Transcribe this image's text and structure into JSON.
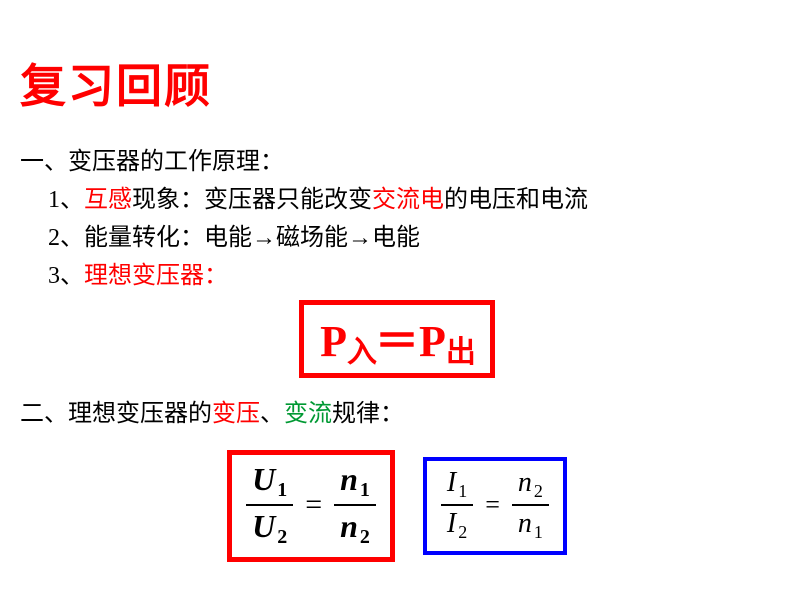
{
  "title": {
    "text": "复习回顾",
    "color": "#ff0000"
  },
  "section1": {
    "head_pre": "一、",
    "head_main": "变压器的工作原理：",
    "items": [
      {
        "num": "1、",
        "parts": [
          {
            "t": "互感",
            "c": "red"
          },
          {
            "t": "现象：变压器只能改变",
            "c": "blk"
          },
          {
            "t": "交流电",
            "c": "red"
          },
          {
            "t": "的电压和电流",
            "c": "blk"
          }
        ]
      },
      {
        "num": "2、",
        "parts": [
          {
            "t": "能量转化：",
            "c": "blk"
          },
          {
            "t": "电能→磁场能→电能",
            "c": "blk"
          }
        ]
      },
      {
        "num": "3、",
        "parts": [
          {
            "t": "理想变压器：",
            "c": "red"
          }
        ]
      }
    ]
  },
  "power_eq": {
    "left_var": "P",
    "left_sub": "入",
    "eq": "＝",
    "right_var": "P",
    "right_sub": "出",
    "border_color": "#ff0000",
    "text_color": "#ff0000"
  },
  "section2": {
    "head_pre": "二、",
    "parts": [
      {
        "t": "理想变压器的",
        "c": "blk"
      },
      {
        "t": "变压",
        "c": "red"
      },
      {
        "t": "、",
        "c": "blk"
      },
      {
        "t": "变流",
        "c": "green"
      },
      {
        "t": "规律：",
        "c": "blk"
      }
    ]
  },
  "formula_u": {
    "border_color": "#ff0000",
    "lhs": {
      "num_var": "U",
      "num_sub": "1",
      "den_var": "U",
      "den_sub": "2"
    },
    "eq": "=",
    "rhs": {
      "num_var": "n",
      "num_sub": "1",
      "den_var": "n",
      "den_sub": "2"
    }
  },
  "formula_i": {
    "border_color": "#0000ff",
    "lhs": {
      "num_var": "I",
      "num_sub": "1",
      "den_var": "I",
      "den_sub": "2"
    },
    "eq": "=",
    "rhs": {
      "num_var": "n",
      "num_sub": "2",
      "den_var": "n",
      "den_sub": "1"
    }
  }
}
